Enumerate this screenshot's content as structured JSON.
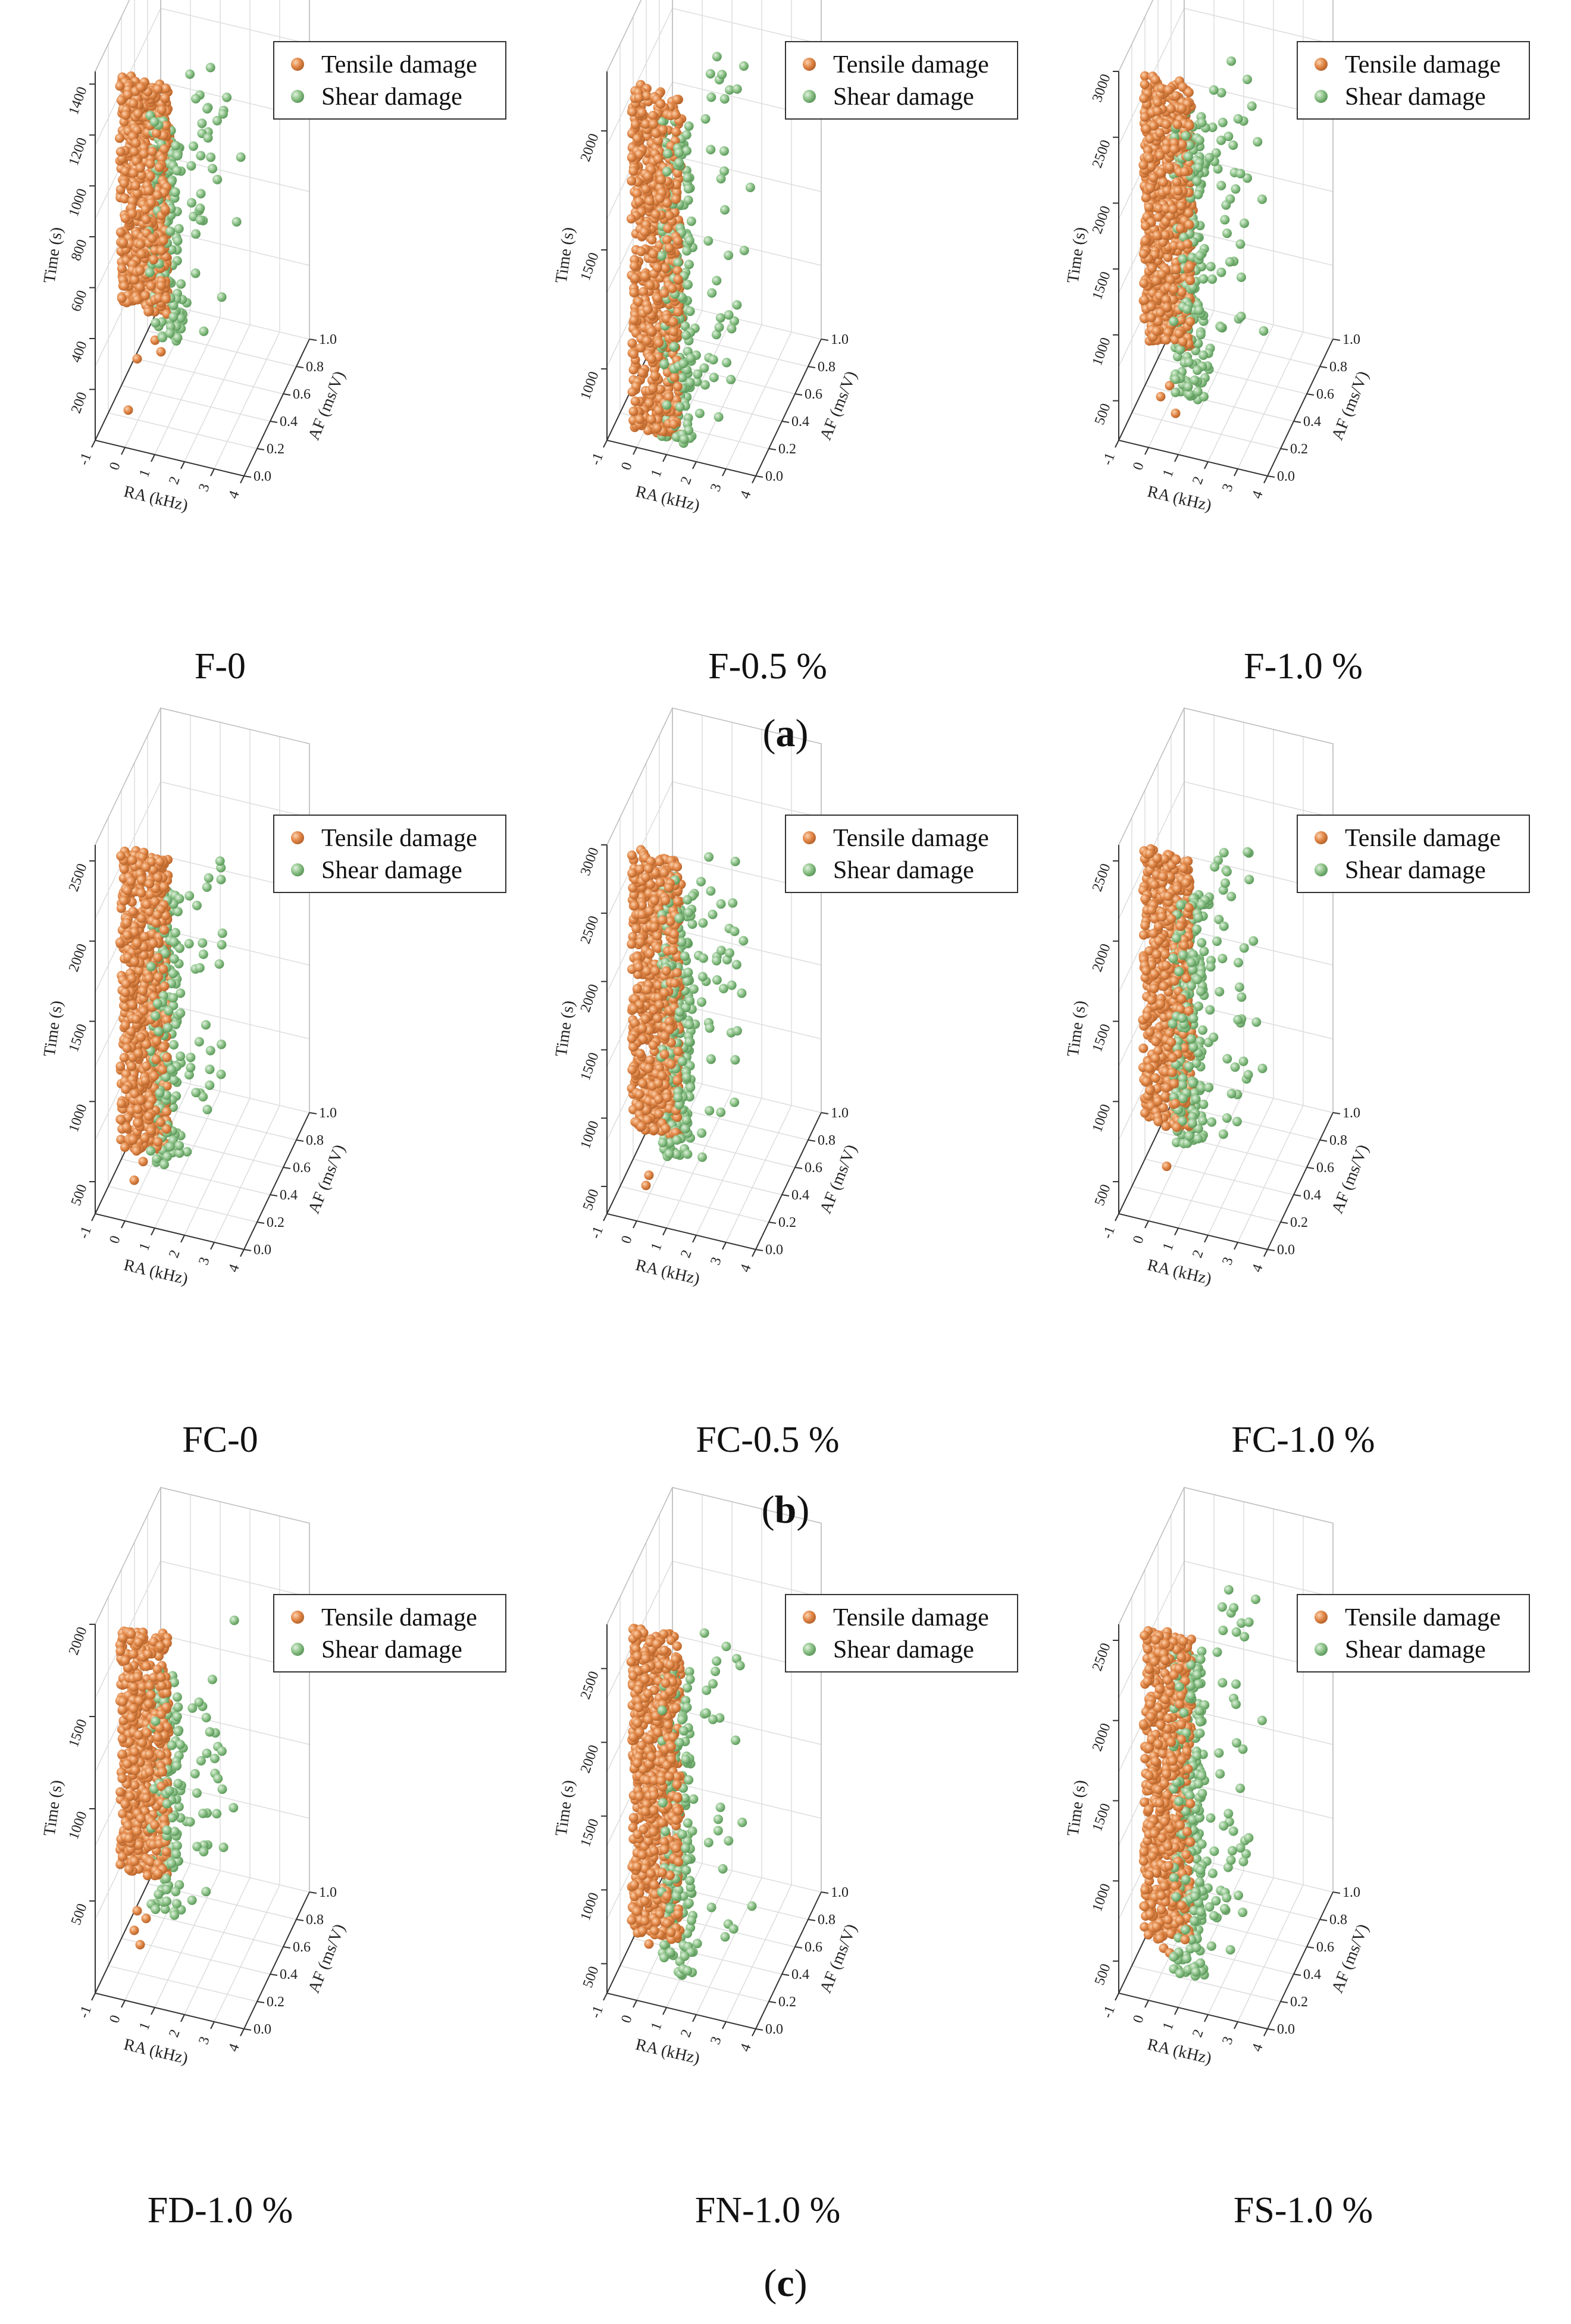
{
  "figure": {
    "group_labels": [
      "a",
      "b",
      "c"
    ]
  },
  "legend": {
    "tensile": "Tensile damage",
    "shear": "Shear damage"
  },
  "colors": {
    "tensile": "#e3894a",
    "tensile_edge": "#b8652c",
    "shear": "#8fc48b",
    "shear_edge": "#5e9a5c",
    "axis": "#333333",
    "grid": "#dddddd"
  },
  "chart_data": [
    {
      "type": "scatter3d",
      "title": "F-0",
      "xlabel": "RA (kHz)",
      "ylabel": "AF (ms/V)",
      "zlabel": "Time (s)",
      "xticks": [
        "-1",
        "0",
        "1",
        "2",
        "3",
        "4"
      ],
      "yticks": [
        "0.0",
        "0.2",
        "0.4",
        "0.6",
        "0.8",
        "1.0"
      ],
      "zticks": [
        "200",
        "400",
        "600",
        "800",
        "1000",
        "1200",
        "1400"
      ],
      "zlim": [
        0,
        1450
      ],
      "tensile": {
        "ra_range": [
          -0.2,
          1.4
        ],
        "time_range": [
          550,
          1450
        ],
        "count": 650,
        "outliers": [
          [
            0.0,
            120
          ],
          [
            0.3,
            330
          ],
          [
            1.1,
            380
          ],
          [
            0.9,
            420
          ]
        ]
      },
      "shear": {
        "ra_range": [
          0.8,
          2.8
        ],
        "time_range": [
          450,
          1350
        ],
        "count": 200
      }
    },
    {
      "type": "scatter3d",
      "title": "F-0.5 %",
      "xlabel": "RA (kHz)",
      "ylabel": "AF (ms/V)",
      "zlabel": "Time (s)",
      "xticks": [
        "-1",
        "0",
        "1",
        "2",
        "3",
        "4"
      ],
      "yticks": [
        "0.0",
        "0.2",
        "0.4",
        "0.6",
        "0.8",
        "1.0"
      ],
      "zticks": [
        "1000",
        "1500",
        "2000"
      ],
      "zlim": [
        700,
        2250
      ],
      "tensile": {
        "ra_range": [
          -0.2,
          1.4
        ],
        "time_range": [
          750,
          2200
        ],
        "count": 650,
        "outliers": []
      },
      "shear": {
        "ra_range": [
          0.8,
          2.8
        ],
        "time_range": [
          750,
          2100
        ],
        "count": 220
      }
    },
    {
      "type": "scatter3d",
      "title": "F-1.0 %",
      "xlabel": "RA (kHz)",
      "ylabel": "AF (ms/V)",
      "zlabel": "Time (s)",
      "xticks": [
        "-1",
        "0",
        "1",
        "2",
        "3",
        "4"
      ],
      "yticks": [
        "0.0",
        "0.2",
        "0.4",
        "0.6",
        "0.8",
        "1.0"
      ],
      "zticks": [
        "500",
        "1000",
        "1500",
        "2000",
        "2500",
        "3000"
      ],
      "zlim": [
        200,
        3000
      ],
      "tensile": {
        "ra_range": [
          -0.2,
          1.4
        ],
        "time_range": [
          1000,
          3000
        ],
        "count": 650,
        "outliers": [
          [
            0.3,
            550
          ],
          [
            0.6,
            650
          ],
          [
            0.8,
            450
          ]
        ]
      },
      "shear": {
        "ra_range": [
          0.8,
          2.8
        ],
        "time_range": [
          600,
          2800
        ],
        "count": 230
      }
    },
    {
      "type": "scatter3d",
      "title": "FC-0",
      "xlabel": "RA (kHz)",
      "ylabel": "AF (ms/V)",
      "zlabel": "Time (s)",
      "xticks": [
        "-1",
        "0",
        "1",
        "2",
        "3",
        "4"
      ],
      "yticks": [
        "0.0",
        "0.2",
        "0.4",
        "0.6",
        "0.8",
        "1.0"
      ],
      "zticks": [
        "500",
        "1000",
        "1500",
        "2000",
        "2500"
      ],
      "zlim": [
        300,
        2600
      ],
      "tensile": {
        "ra_range": [
          -0.2,
          1.4
        ],
        "time_range": [
          750,
          2600
        ],
        "count": 650,
        "outliers": [
          [
            0.2,
            520
          ],
          [
            0.5,
            650
          ]
        ]
      },
      "shear": {
        "ra_range": [
          0.8,
          2.8
        ],
        "time_range": [
          700,
          2400
        ],
        "count": 200
      }
    },
    {
      "type": "scatter3d",
      "title": "FC-0.5 %",
      "xlabel": "RA (kHz)",
      "ylabel": "AF (ms/V)",
      "zlabel": "Time (s)",
      "xticks": [
        "-1",
        "0",
        "1",
        "2",
        "3",
        "4"
      ],
      "yticks": [
        "0.0",
        "0.2",
        "0.4",
        "0.6",
        "0.8",
        "1.0"
      ],
      "zticks": [
        "500",
        "1000",
        "1500",
        "2000",
        "2500",
        "3000"
      ],
      "zlim": [
        300,
        3000
      ],
      "tensile": {
        "ra_range": [
          -0.2,
          1.4
        ],
        "time_range": [
          950,
          3000
        ],
        "count": 650,
        "outliers": [
          [
            0.3,
            600
          ],
          [
            0.2,
            520
          ]
        ]
      },
      "shear": {
        "ra_range": [
          0.8,
          2.8
        ],
        "time_range": [
          800,
          2900
        ],
        "count": 280
      }
    },
    {
      "type": "scatter3d",
      "title": "FC-1.0 %",
      "xlabel": "RA (kHz)",
      "ylabel": "AF (ms/V)",
      "zlabel": "Time (s)",
      "xticks": [
        "-1",
        "0",
        "1",
        "2",
        "3",
        "4"
      ],
      "yticks": [
        "0.0",
        "0.2",
        "0.4",
        "0.6",
        "0.8",
        "1.0"
      ],
      "zticks": [
        "500",
        "1000",
        "1500",
        "2000",
        "2500"
      ],
      "zlim": [
        300,
        2600
      ],
      "tensile": {
        "ra_range": [
          -0.2,
          1.4
        ],
        "time_range": [
          900,
          2600
        ],
        "count": 600,
        "outliers": [
          [
            0.5,
            620
          ]
        ]
      },
      "shear": {
        "ra_range": [
          0.8,
          2.8
        ],
        "time_range": [
          800,
          2350
        ],
        "count": 260
      }
    },
    {
      "type": "scatter3d",
      "title": "FD-1.0 %",
      "xlabel": "RA (kHz)",
      "ylabel": "AF (ms/V)",
      "zlabel": "Time (s)",
      "xticks": [
        "-1",
        "0",
        "1",
        "2",
        "3",
        "4"
      ],
      "yticks": [
        "0.0",
        "0.2",
        "0.4",
        "0.6",
        "0.8",
        "1.0"
      ],
      "zticks": [
        "500",
        "1000",
        "1500",
        "2000"
      ],
      "zlim": [
        0,
        2000
      ],
      "tensile": {
        "ra_range": [
          -0.2,
          1.4
        ],
        "time_range": [
          700,
          2000
        ],
        "count": 600,
        "outliers": [
          [
            0.2,
            350
          ],
          [
            0.4,
            280
          ],
          [
            0.6,
            430
          ],
          [
            0.3,
            460
          ]
        ]
      },
      "shear": {
        "ra_range": [
          0.8,
          2.8
        ],
        "time_range": [
          500,
          1850
        ],
        "count": 150
      }
    },
    {
      "type": "scatter3d",
      "title": "FN-1.0 %",
      "xlabel": "RA (kHz)",
      "ylabel": "AF (ms/V)",
      "zlabel": "Time (s)",
      "xticks": [
        "-1",
        "0",
        "1",
        "2",
        "3",
        "4"
      ],
      "yticks": [
        "0.0",
        "0.2",
        "0.4",
        "0.6",
        "0.8",
        "1.0"
      ],
      "zticks": [
        "500",
        "1000",
        "1500",
        "2000",
        "2500"
      ],
      "zlim": [
        300,
        2800
      ],
      "tensile": {
        "ra_range": [
          -0.2,
          1.4
        ],
        "time_range": [
          750,
          2800
        ],
        "count": 650,
        "outliers": [
          [
            0.3,
            650
          ]
        ]
      },
      "shear": {
        "ra_range": [
          0.8,
          2.8
        ],
        "time_range": [
          500,
          2600
        ],
        "count": 200
      }
    },
    {
      "type": "scatter3d",
      "title": "FS-1.0 %",
      "xlabel": "RA (kHz)",
      "ylabel": "AF (ms/V)",
      "zlabel": "Time (s)",
      "xticks": [
        "-1",
        "0",
        "1",
        "2",
        "3",
        "4"
      ],
      "yticks": [
        "0.0",
        "0.2",
        "0.4",
        "0.6",
        "0.8",
        "1.0"
      ],
      "zticks": [
        "500",
        "1000",
        "1500",
        "2000",
        "2500"
      ],
      "zlim": [
        300,
        2600
      ],
      "tensile": {
        "ra_range": [
          -0.2,
          1.4
        ],
        "time_range": [
          700,
          2600
        ],
        "count": 650,
        "outliers": [
          [
            0.2,
            650
          ],
          [
            0.4,
            600
          ],
          [
            0.6,
            580
          ]
        ]
      },
      "shear": {
        "ra_range": [
          0.8,
          2.8
        ],
        "time_range": [
          500,
          2500
        ],
        "count": 300
      }
    }
  ]
}
